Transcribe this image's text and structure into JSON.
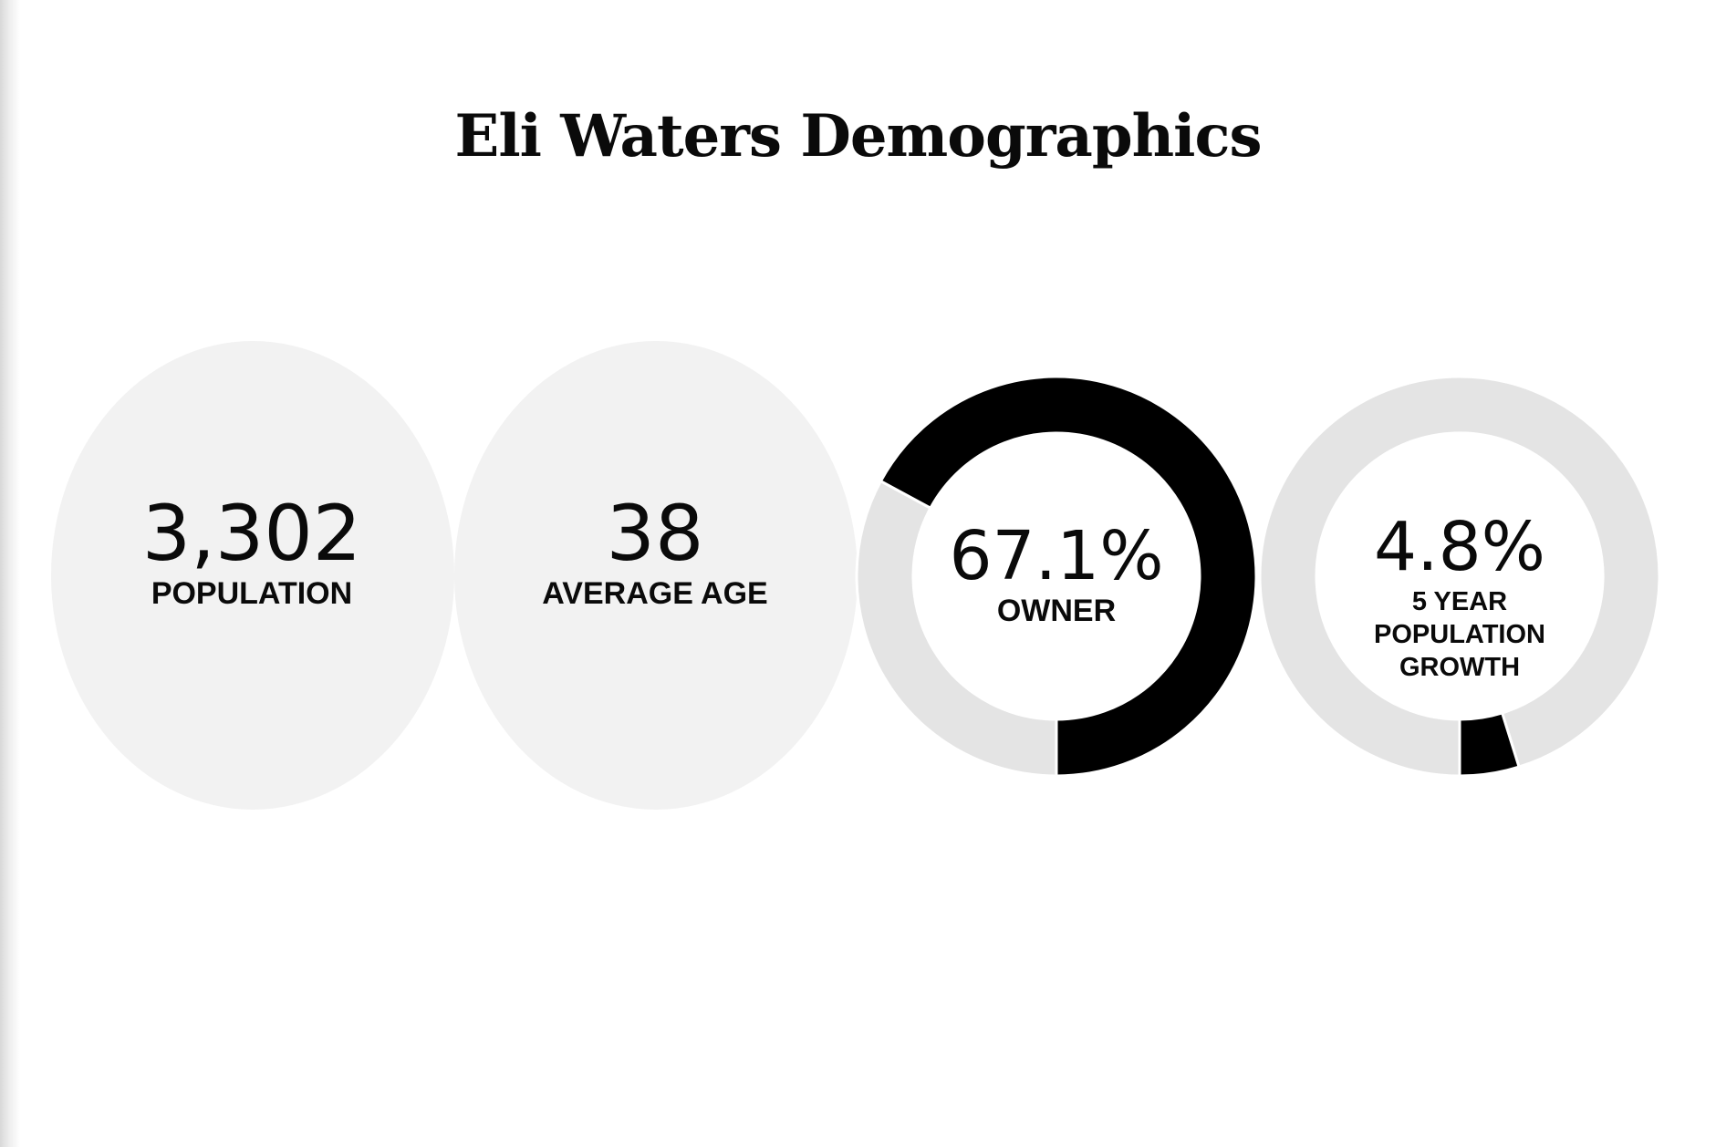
{
  "page": {
    "title": "Eli Waters Demographics"
  },
  "stats": {
    "population": {
      "value": "3,302",
      "label": "POPULATION"
    },
    "average_age": {
      "value": "38",
      "label": "AVERAGE AGE"
    }
  },
  "donuts": {
    "owner": {
      "value": "67.1%",
      "label": "OWNER",
      "fraction": 0.671
    },
    "growth": {
      "value": "4.8%",
      "label_lines": [
        "5 YEAR",
        "POPULATION",
        "GROWTH"
      ],
      "fraction": 0.048
    }
  },
  "colors": {
    "oval_fill": "#f2f2f2",
    "ring_track": "#e4e4e4",
    "ring_fill": "#000000",
    "text": "#0a0a0a",
    "background": "#ffffff"
  }
}
